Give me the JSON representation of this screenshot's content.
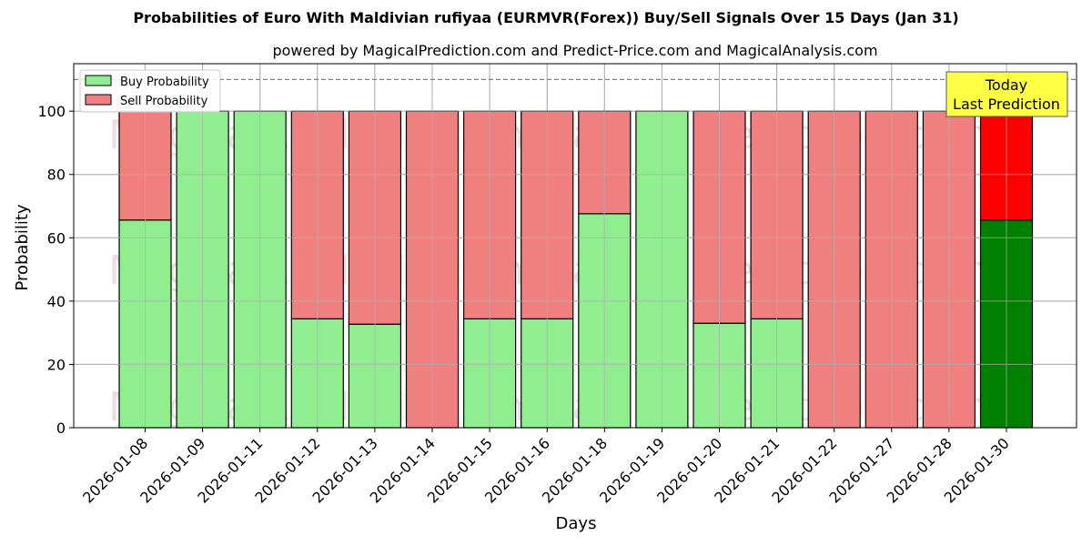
{
  "title": "Probabilities of Euro With Maldivian rufiyaa (EURMVR(Forex)) Buy/Sell Signals Over 15 Days (Jan 31)",
  "subtitle": "powered by MagicalPrediction.com and Predict-Price.com and MagicalAnalysis.com",
  "watermarks": [
    "MagicalAnalysis.com",
    "MagicalPrediction.com"
  ],
  "annotation": {
    "line1": "Today",
    "line2": "Last Prediction",
    "bg": "#ffff44"
  },
  "colors": {
    "buy": "#90ee90",
    "sell": "#f08080",
    "today_buy": "#008000",
    "today_sell": "#ff0000"
  },
  "chart_data": {
    "type": "bar",
    "stacked": true,
    "title": "Probabilities of Euro With Maldivian rufiyaa (EURMVR(Forex)) Buy/Sell Signals Over 15 Days (Jan 31)",
    "subtitle": "powered by MagicalPrediction.com and Predict-Price.com and MagicalAnalysis.com",
    "xlabel": "Days",
    "ylabel": "Probability",
    "ylim": [
      0,
      115
    ],
    "yticks": [
      0,
      20,
      40,
      60,
      80,
      100
    ],
    "reference_line": 110,
    "grid": true,
    "legend_position": "upper left",
    "categories": [
      "2026-01-08",
      "2026-01-09",
      "2026-01-11",
      "2026-01-12",
      "2026-01-13",
      "2026-01-14",
      "2026-01-15",
      "2026-01-16",
      "2026-01-18",
      "2026-01-19",
      "2026-01-20",
      "2026-01-21",
      "2026-01-22",
      "2026-01-27",
      "2026-01-28",
      "2026-01-30"
    ],
    "series": [
      {
        "name": "Buy Probability",
        "values": [
          65.6,
          100,
          100,
          34.4,
          32.7,
          0,
          34.4,
          34.4,
          67.6,
          100,
          33.0,
          34.4,
          0,
          0,
          0,
          65.6
        ]
      },
      {
        "name": "Sell Probability",
        "values": [
          34.4,
          0,
          0,
          65.6,
          67.3,
          100,
          65.6,
          65.6,
          32.4,
          0,
          67.0,
          65.6,
          100,
          100,
          100,
          34.4
        ]
      }
    ],
    "highlight_index": 15,
    "annotation": "Today\nLast Prediction"
  }
}
